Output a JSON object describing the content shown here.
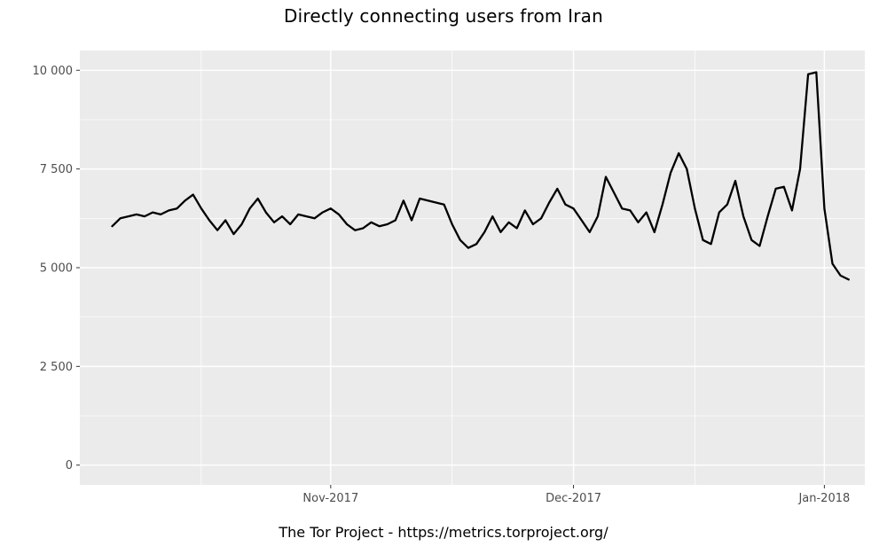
{
  "title": "Directly connecting users from Iran",
  "footer": "The Tor Project - https://metrics.torproject.org/",
  "chart_data": {
    "type": "line",
    "title": "Directly connecting users from Iran",
    "xlabel": "",
    "ylabel": "",
    "ylim": [
      0,
      10000
    ],
    "x_domain": [
      "2017-10-01",
      "2018-01-06"
    ],
    "panel_bg": "#EBEBEB",
    "grid_color": "#FFFFFF",
    "line_color": "#000000",
    "tick_mark_color": "#333333",
    "tick_label_color": "#4D4D4D",
    "y_ticks": [
      {
        "label": "0",
        "value": 0
      },
      {
        "label": "2 500",
        "value": 2500
      },
      {
        "label": "5 000",
        "value": 5000
      },
      {
        "label": "7 500",
        "value": 7500
      },
      {
        "label": "10 000",
        "value": 10000
      }
    ],
    "y_minor": [
      1250,
      3750,
      6250,
      8750
    ],
    "x_ticks": [
      {
        "label": "Nov-2017",
        "date": "2017-11-01"
      },
      {
        "label": "Dec-2017",
        "date": "2017-12-01"
      },
      {
        "label": "Jan-2018",
        "date": "2018-01-01"
      }
    ],
    "x_minor_dates": [
      "2017-10-16",
      "2017-11-16",
      "2017-12-16"
    ],
    "x": [
      "2017-10-05",
      "2017-10-06",
      "2017-10-07",
      "2017-10-08",
      "2017-10-09",
      "2017-10-10",
      "2017-10-11",
      "2017-10-12",
      "2017-10-13",
      "2017-10-14",
      "2017-10-15",
      "2017-10-16",
      "2017-10-17",
      "2017-10-18",
      "2017-10-19",
      "2017-10-20",
      "2017-10-21",
      "2017-10-22",
      "2017-10-23",
      "2017-10-24",
      "2017-10-25",
      "2017-10-26",
      "2017-10-27",
      "2017-10-28",
      "2017-10-29",
      "2017-10-30",
      "2017-10-31",
      "2017-11-01",
      "2017-11-02",
      "2017-11-03",
      "2017-11-04",
      "2017-11-05",
      "2017-11-06",
      "2017-11-07",
      "2017-11-08",
      "2017-11-09",
      "2017-11-10",
      "2017-11-11",
      "2017-11-12",
      "2017-11-13",
      "2017-11-14",
      "2017-11-15",
      "2017-11-16",
      "2017-11-17",
      "2017-11-18",
      "2017-11-19",
      "2017-11-20",
      "2017-11-21",
      "2017-11-22",
      "2017-11-23",
      "2017-11-24",
      "2017-11-25",
      "2017-11-26",
      "2017-11-27",
      "2017-11-28",
      "2017-11-29",
      "2017-11-30",
      "2017-12-01",
      "2017-12-02",
      "2017-12-03",
      "2017-12-04",
      "2017-12-05",
      "2017-12-06",
      "2017-12-07",
      "2017-12-08",
      "2017-12-09",
      "2017-12-10",
      "2017-12-11",
      "2017-12-12",
      "2017-12-13",
      "2017-12-14",
      "2017-12-15",
      "2017-12-16",
      "2017-12-17",
      "2017-12-18",
      "2017-12-19",
      "2017-12-20",
      "2017-12-21",
      "2017-12-22",
      "2017-12-23",
      "2017-12-24",
      "2017-12-25",
      "2017-12-26",
      "2017-12-27",
      "2017-12-28",
      "2017-12-29",
      "2017-12-30",
      "2017-12-31",
      "2018-01-01",
      "2018-01-02",
      "2018-01-03",
      "2018-01-04"
    ],
    "values": [
      6050,
      6250,
      6300,
      6350,
      6300,
      6400,
      6350,
      6450,
      6500,
      6700,
      6850,
      6500,
      6200,
      5950,
      6200,
      5850,
      6100,
      6500,
      6750,
      6400,
      6150,
      6300,
      6100,
      6350,
      6300,
      6250,
      6400,
      6500,
      6350,
      6100,
      5950,
      6000,
      6150,
      6050,
      6100,
      6200,
      6700,
      6200,
      6750,
      6700,
      6650,
      6600,
      6100,
      5700,
      5500,
      5600,
      5900,
      6300,
      5900,
      6150,
      6000,
      6450,
      6100,
      6250,
      6650,
      7000,
      6600,
      6500,
      6200,
      5900,
      6300,
      7300,
      6900,
      6500,
      6450,
      6150,
      6400,
      5900,
      6600,
      7400,
      7900,
      7500,
      6500,
      5700,
      5600,
      6400,
      6600,
      7200,
      6300,
      5700,
      5550,
      6300,
      7000,
      7050,
      6450,
      7500,
      9900,
      9950,
      6500,
      5100,
      4800,
      4700
    ]
  }
}
